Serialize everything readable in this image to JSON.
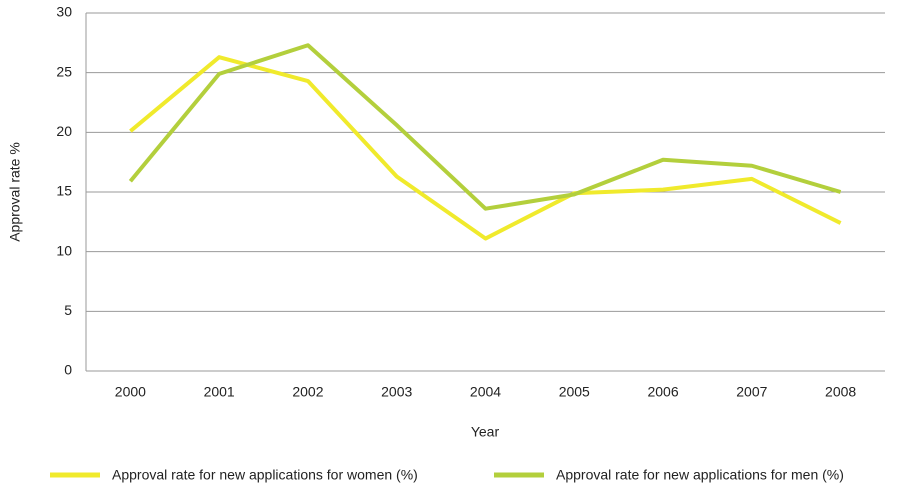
{
  "chart_data": {
    "type": "line",
    "x_label": "Year",
    "y_label": "Approval rate %",
    "categories": [
      "2000",
      "2001",
      "2002",
      "2003",
      "2004",
      "2005",
      "2006",
      "2007",
      "2008"
    ],
    "series": [
      {
        "name": "Approval rate for new applications for women (%)",
        "color": "#f0ea2c",
        "values": [
          20.1,
          26.3,
          24.3,
          16.3,
          11.1,
          14.9,
          15.2,
          16.1,
          12.4
        ]
      },
      {
        "name": "Approval rate for new applications for men (%)",
        "color": "#b3cf3c",
        "values": [
          15.9,
          24.9,
          27.3,
          20.6,
          13.6,
          14.8,
          17.7,
          17.2,
          15.0
        ]
      }
    ],
    "ylim": [
      0,
      30
    ],
    "yticks": [
      0,
      5,
      10,
      15,
      20,
      25,
      30
    ],
    "grid": true,
    "legend": "bottom"
  }
}
